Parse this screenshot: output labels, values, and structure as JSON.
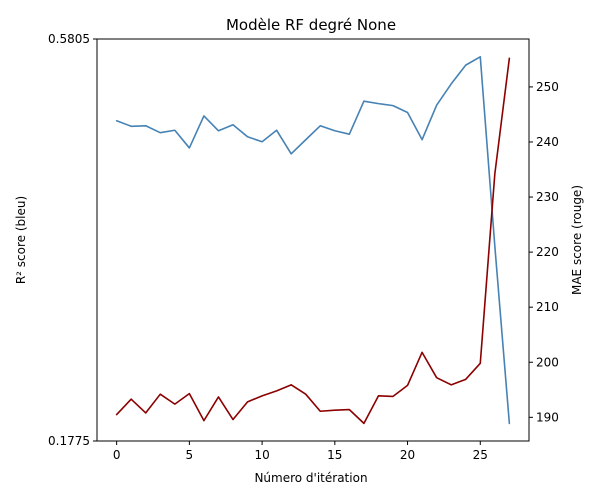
{
  "chart_data": {
    "type": "line",
    "title": "Modèle RF degré None",
    "xlabel": "Número d'itération",
    "ylabel_left": "R² score (bleu)",
    "ylabel_right": "MAE score (rouge)",
    "x": [
      0,
      1,
      2,
      3,
      4,
      5,
      6,
      7,
      8,
      9,
      10,
      11,
      12,
      13,
      14,
      15,
      16,
      17,
      18,
      19,
      20,
      21,
      22,
      23,
      24,
      25,
      26,
      27
    ],
    "xlim": [
      -1.35,
      28.35
    ],
    "xticks": [
      0,
      5,
      10,
      15,
      20,
      25
    ],
    "ylim_left": [
      0.1775,
      0.5805
    ],
    "yticks_left": [
      "0.5805",
      "0.1775"
    ],
    "ylim_right": [
      185.7,
      258.7
    ],
    "yticks_right": [
      190,
      200,
      210,
      220,
      230,
      240,
      250
    ],
    "grid": false,
    "series": [
      {
        "axis": "left",
        "color": "#4682b4",
        "values": [
          0.4985,
          0.493,
          0.4935,
          0.4866,
          0.489,
          0.4713,
          0.5034,
          0.4885,
          0.4945,
          0.4825,
          0.4775,
          0.489,
          0.4654,
          0.4795,
          0.4935,
          0.4885,
          0.4851,
          0.5182,
          0.5157,
          0.5137,
          0.5068,
          0.4796,
          0.5142,
          0.5355,
          0.5543,
          0.5627,
          0.373,
          0.1951
        ]
      },
      {
        "axis": "right",
        "color": "#8b0000",
        "values": [
          190.5,
          193.3,
          190.8,
          194.2,
          192.4,
          194.3,
          189.4,
          193.7,
          189.6,
          192.8,
          193.9,
          194.8,
          195.9,
          194.2,
          191.1,
          191.3,
          191.4,
          188.9,
          193.9,
          193.8,
          195.8,
          201.8,
          197.2,
          195.9,
          196.9,
          199.8,
          234.2,
          255.2
        ]
      }
    ]
  }
}
